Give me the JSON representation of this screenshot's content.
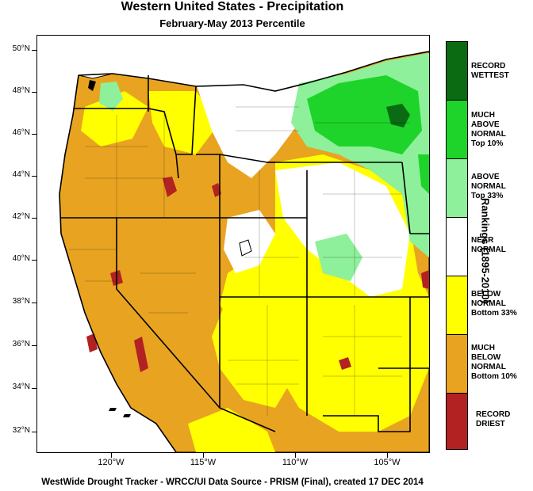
{
  "title": "Western United States - Precipitation",
  "subtitle": "February-May 2013 Percentile",
  "footer": "WestWide Drought Tracker - WRCC/UI  Data Source - PRISM (Final), created 17 DEC 2014",
  "legend": {
    "title": "Rankings (1895-2010)",
    "categories": [
      {
        "lines": [
          "RECORD",
          "WETTEST"
        ],
        "color": "#0a6b12"
      },
      {
        "lines": [
          "MUCH",
          "ABOVE",
          "NORMAL",
          "Top 10%"
        ],
        "color": "#1ed42a"
      },
      {
        "lines": [
          "ABOVE",
          "NORMAL",
          "Top 33%"
        ],
        "color": "#8ef09a"
      },
      {
        "lines": [
          "NEAR",
          "NORMAL"
        ],
        "color": "#ffffff"
      },
      {
        "lines": [
          "BELOW",
          "NORMAL",
          "Bottom 33%"
        ],
        "color": "#ffff00"
      },
      {
        "lines": [
          "MUCH",
          "BELOW",
          "NORMAL",
          "Bottom 10%"
        ],
        "color": "#e8a421"
      },
      {
        "lines": [
          "RECORD",
          "DRIEST"
        ],
        "color": "#b22222"
      }
    ]
  },
  "axes": {
    "lat_labels": [
      "50°N",
      "48°N",
      "46°N",
      "44°N",
      "42°N",
      "40°N",
      "38°N",
      "36°N",
      "34°N",
      "32°N"
    ],
    "lon_labels": [
      "120°W",
      "115°W",
      "110°W",
      "105°W"
    ]
  }
}
